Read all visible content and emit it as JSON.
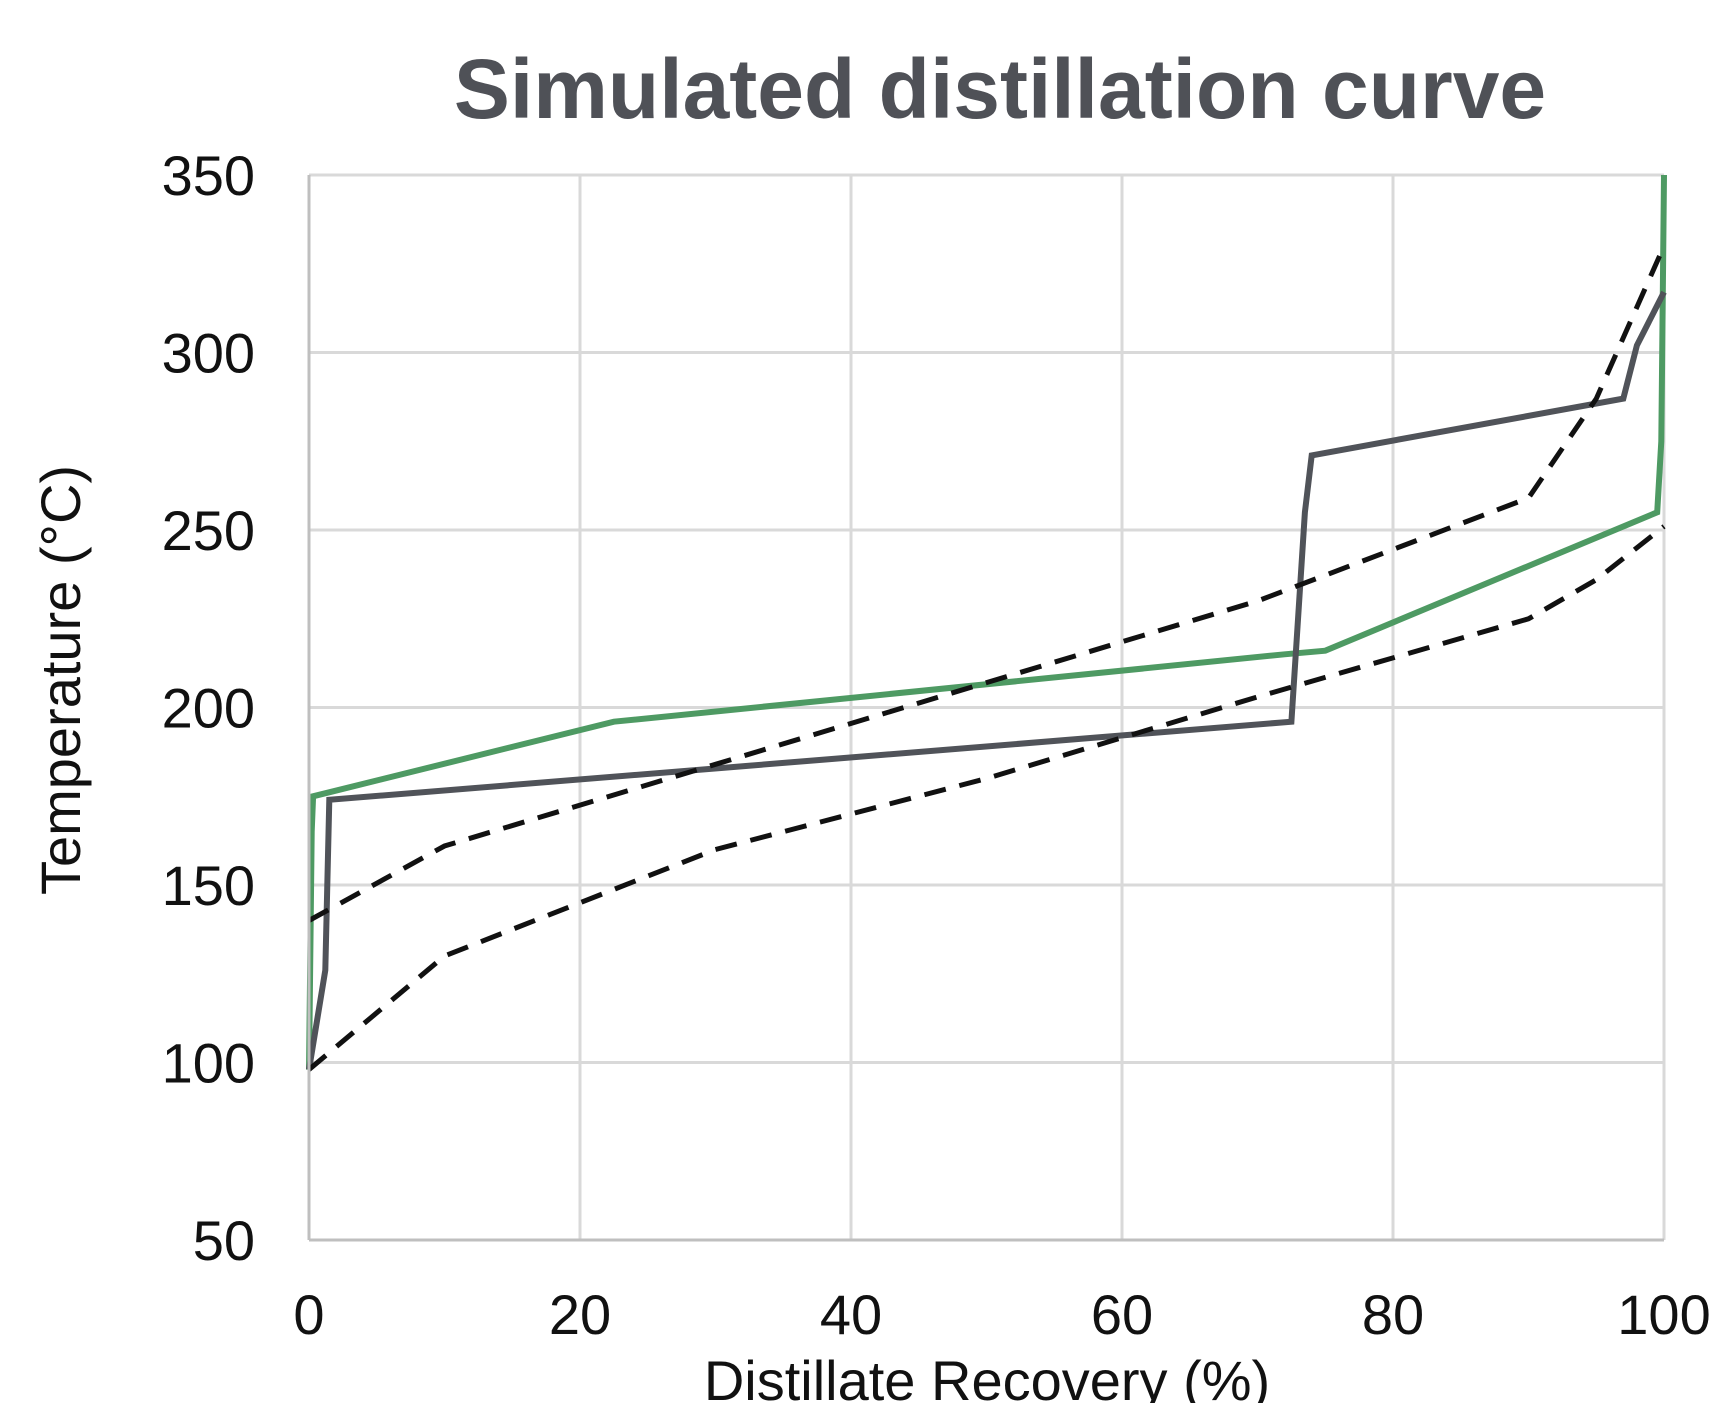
{
  "chart_data": {
    "type": "line",
    "title": "Simulated distillation curve",
    "xlabel": "Distillate Recovery (%)",
    "ylabel": "Temperature (°C)",
    "xlim": [
      0,
      100
    ],
    "ylim": [
      50,
      350
    ],
    "xticks": [
      "0",
      "20",
      "40",
      "60",
      "80",
      "100"
    ],
    "yticks": [
      "50",
      "100",
      "150",
      "200",
      "250",
      "300",
      "350"
    ],
    "grid": true,
    "legend": "none",
    "colors": {
      "green": "#4e9a63",
      "dark_gray": "#505359",
      "dashed": "#111111",
      "grid": "#d9d9d9",
      "axis": "#bfbfbf",
      "title": "#4f5157"
    },
    "series": [
      {
        "style": "solid",
        "color": "green",
        "points": [
          [
            0,
            98
          ],
          [
            0.2,
            165
          ],
          [
            0.3,
            175
          ],
          [
            22.5,
            196
          ],
          [
            72,
            215
          ],
          [
            75,
            216
          ],
          [
            99.5,
            255
          ],
          [
            99.8,
            275
          ],
          [
            100,
            350
          ]
        ]
      },
      {
        "style": "solid",
        "color": "dark_gray",
        "points": [
          [
            0,
            98
          ],
          [
            1.2,
            126
          ],
          [
            1.5,
            174
          ],
          [
            72.5,
            196
          ],
          [
            73.5,
            255
          ],
          [
            74,
            271
          ],
          [
            97,
            287
          ],
          [
            98,
            302
          ],
          [
            100,
            317
          ]
        ]
      },
      {
        "style": "dashed",
        "color": "dashed",
        "points": [
          [
            0,
            140
          ],
          [
            10,
            161
          ],
          [
            30,
            184
          ],
          [
            50,
            207
          ],
          [
            70,
            230
          ],
          [
            90,
            259
          ],
          [
            95,
            287
          ],
          [
            100,
            330
          ]
        ]
      },
      {
        "style": "dashed",
        "color": "dashed",
        "points": [
          [
            0,
            98
          ],
          [
            10,
            130
          ],
          [
            30,
            160
          ],
          [
            50,
            180
          ],
          [
            70,
            203
          ],
          [
            90,
            225
          ],
          [
            95,
            236
          ],
          [
            100,
            251
          ]
        ]
      }
    ]
  }
}
